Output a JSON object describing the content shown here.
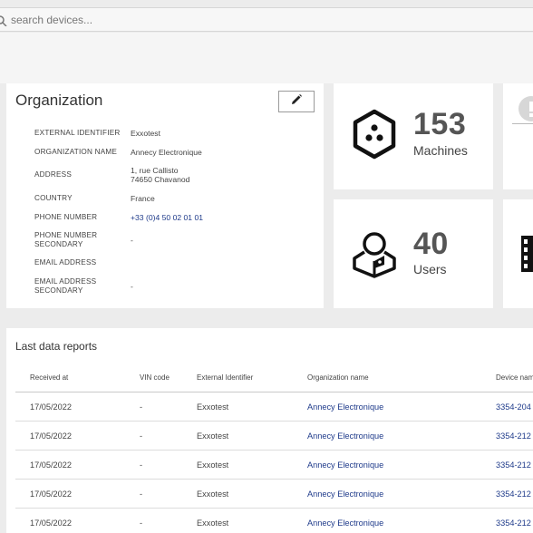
{
  "search": {
    "placeholder": "search devices..."
  },
  "organization": {
    "title": "Organization",
    "fields": [
      {
        "label": "EXTERNAL IDENTIFIER",
        "value": "Exxotest"
      },
      {
        "label": "ORGANIZATION NAME",
        "value": "Annecy Electronique"
      },
      {
        "label": "ADDRESS",
        "value": "1, rue Callisto\n74650 Chavanod"
      },
      {
        "label": "COUNTRY",
        "value": "France"
      },
      {
        "label": "PHONE NUMBER",
        "value": "+33 (0)4 50 02 01 01"
      },
      {
        "label": "PHONE NUMBER SECONDARY",
        "value": "-"
      },
      {
        "label": "EMAIL ADDRESS",
        "value": ""
      },
      {
        "label": "EMAIL ADDRESS SECONDARY",
        "value": "-"
      }
    ]
  },
  "stats": {
    "machines": {
      "count": "153",
      "label": "Machines"
    },
    "users": {
      "count": "40",
      "label": "Users"
    }
  },
  "reports": {
    "title": "Last data reports",
    "columns": [
      "Received at",
      "VIN code",
      "External Identifier",
      "Organization name",
      "Device nam"
    ],
    "rows": [
      [
        "17/05/2022",
        "-",
        "Exxotest",
        "Annecy Electronique",
        "3354-204"
      ],
      [
        "17/05/2022",
        "-",
        "Exxotest",
        "Annecy Electronique",
        "3354-212"
      ],
      [
        "17/05/2022",
        "-",
        "Exxotest",
        "Annecy Electronique",
        "3354-212"
      ],
      [
        "17/05/2022",
        "-",
        "Exxotest",
        "Annecy Electronique",
        "3354-212"
      ],
      [
        "17/05/2022",
        "-",
        "Exxotest",
        "Annecy Electronique",
        "3354-212"
      ]
    ]
  },
  "colors": {
    "link": "#1e3a8a",
    "background": "#ececec",
    "card": "#ffffff"
  },
  "icons": {
    "search": "search-icon",
    "edit": "pencil-icon",
    "machines": "hexagon-dots-icon",
    "users": "user-hex-icon"
  }
}
